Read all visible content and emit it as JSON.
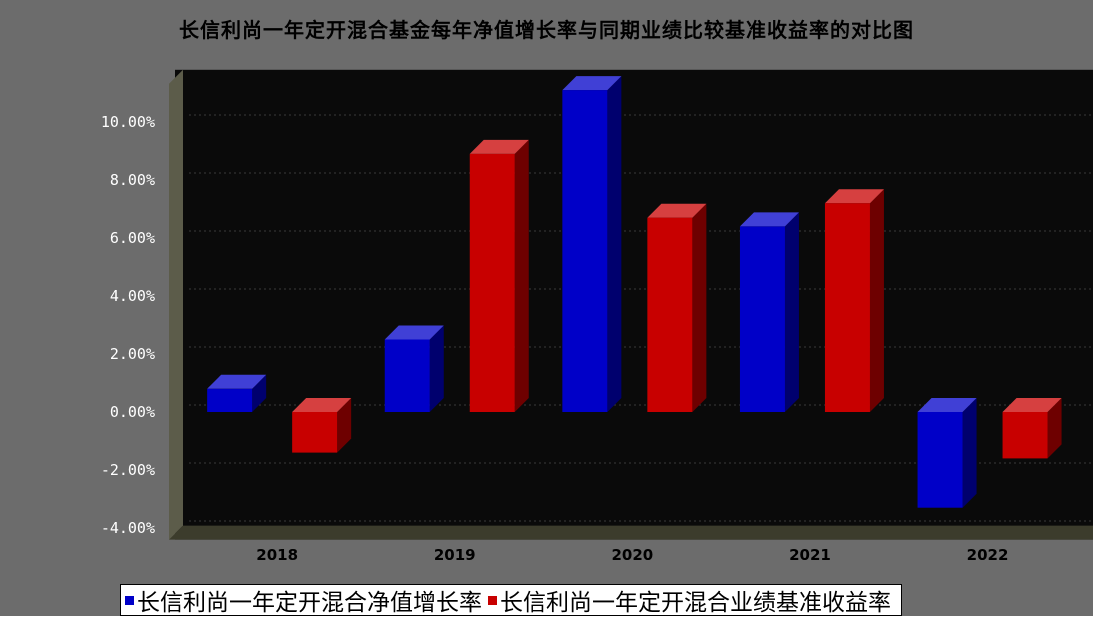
{
  "chart_data": {
    "type": "bar",
    "title": "长信利尚一年定开混合基金每年净值增长率与同期业绩比较基准收益率的对比图",
    "categories": [
      "2018",
      "2019",
      "2020",
      "2021",
      "2022"
    ],
    "series": [
      {
        "name": "长信利尚一年定开混合净值增长率",
        "color": "#0000c8",
        "values": [
          0.8,
          2.5,
          11.1,
          6.4,
          -3.3
        ]
      },
      {
        "name": "长信利尚一年定开混合业绩基准收益率",
        "color": "#c80000",
        "values": [
          -1.4,
          8.9,
          6.7,
          7.2,
          -1.6
        ]
      }
    ],
    "y_ticks": [
      "-4.00%",
      "-2.00%",
      "0.00%",
      "2.00%",
      "4.00%",
      "6.00%",
      "8.00%",
      "10.00%"
    ],
    "ylim": [
      -4.4,
      11.8
    ],
    "grid": true,
    "legend_position": "bottom"
  }
}
